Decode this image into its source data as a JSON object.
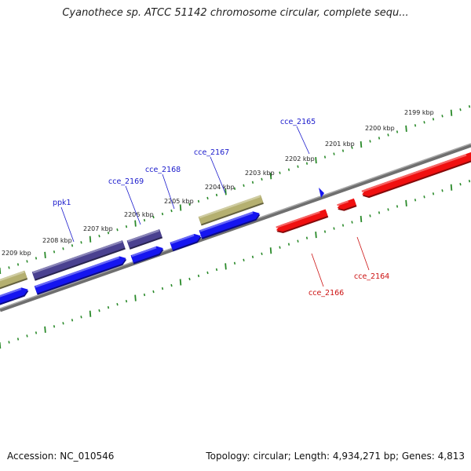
{
  "title": "Cyanothece sp. ATCC 51142 chromosome circular, complete sequ...",
  "footer": {
    "accession": "Accession: NC_010546",
    "stats": "Topology: circular; Length: 4,934,271 bp; Genes: 4,813"
  },
  "map": {
    "kbp_labels": [
      "2199 kbp",
      "2200 kbp",
      "2201 kbp",
      "2202 kbp",
      "2203 kbp",
      "2204 kbp",
      "2205 kbp",
      "2206 kbp",
      "2207 kbp",
      "2208 kbp",
      "2209 kbp"
    ],
    "colors": {
      "forward_cds": "#1515f0",
      "reverse_cds": "#f01010",
      "gene_forward": "#4a4190",
      "gene_other": "#b5b070",
      "backbone": "#888888",
      "ticks": "#2a8a2a",
      "label_forward": "#1a1acc",
      "label_reverse": "#cc1111"
    }
  },
  "gene_labels": {
    "forward": [
      "cce_2165",
      "cce_2167",
      "cce_2168",
      "cce_2169",
      "ppk1"
    ],
    "reverse": [
      "cce_2164",
      "cce_2166"
    ]
  }
}
